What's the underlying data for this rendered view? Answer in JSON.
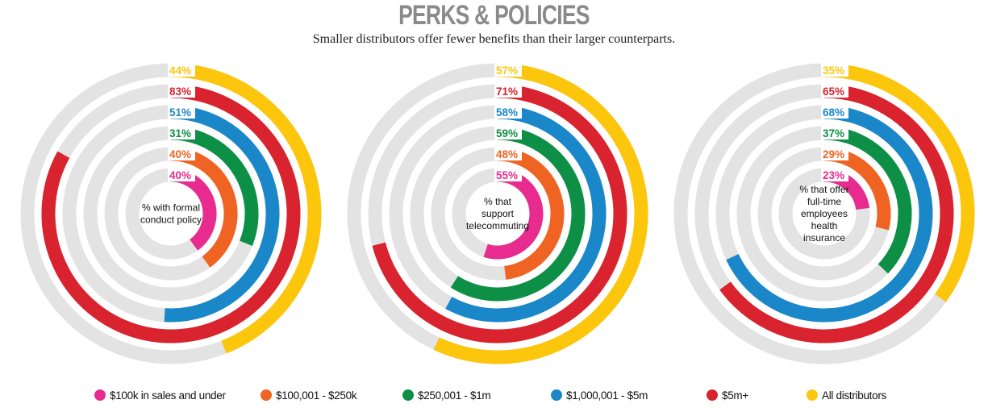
{
  "title": "PERKS & POLICIES",
  "subtitle": "Smaller distributors offer fewer benefits than their larger counterparts.",
  "colors": {
    "track": "#e3e3e3",
    "$100k in sales and under": "#e82c8f",
    "$100,001 - $250k": "#f06423",
    "$250,001 - $1m": "#0e8f46",
    "$1,000,001 - $5m": "#1a87c9",
    "$5m+": "#d9232e",
    "All distributors": "#fcc60d"
  },
  "legend": [
    {
      "label": "$100k in sales and under",
      "color": "#e82c8f"
    },
    {
      "label": "$100,001 - $250k",
      "color": "#f06423"
    },
    {
      "label": "$250,001 - $1m",
      "color": "#0e8f46"
    },
    {
      "label": "$1,000,001 - $5m",
      "color": "#1a87c9"
    },
    {
      "label": "$5m+",
      "color": "#d9232e"
    },
    {
      "label": "All distributors",
      "color": "#fcc60d"
    }
  ],
  "chart_data": [
    {
      "type": "radial-bar",
      "title": "% with formal conduct policy",
      "series": [
        {
          "name": "$100k in sales and under",
          "value": 40,
          "label": "40%"
        },
        {
          "name": "$100,001 - $250k",
          "value": 40,
          "label": "40%"
        },
        {
          "name": "$250,001 - $1m",
          "value": 31,
          "label": "31%"
        },
        {
          "name": "$1,000,001 - $5m",
          "value": 51,
          "label": "51%"
        },
        {
          "name": "$5m+",
          "value": 83,
          "label": "83%"
        },
        {
          "name": "All distributors",
          "value": 44,
          "label": "44%"
        }
      ]
    },
    {
      "type": "radial-bar",
      "title": "% that support telecommuting",
      "series": [
        {
          "name": "$100k in sales and under",
          "value": 55,
          "label": "55%"
        },
        {
          "name": "$100,001 - $250k",
          "value": 48,
          "label": "48%"
        },
        {
          "name": "$250,001 - $1m",
          "value": 59,
          "label": "59%"
        },
        {
          "name": "$1,000,001 - $5m",
          "value": 58,
          "label": "58%"
        },
        {
          "name": "$5m+",
          "value": 71,
          "label": "71%"
        },
        {
          "name": "All distributors",
          "value": 57,
          "label": "57%"
        }
      ]
    },
    {
      "type": "radial-bar",
      "title": "% that offer full-time employees health insurance",
      "series": [
        {
          "name": "$100k in sales and under",
          "value": 23,
          "label": "23%"
        },
        {
          "name": "$100,001 - $250k",
          "value": 29,
          "label": "29%"
        },
        {
          "name": "$250,001 - $1m",
          "value": 37,
          "label": "37%"
        },
        {
          "name": "$1,000,001 - $5m",
          "value": 68,
          "label": "68%"
        },
        {
          "name": "$5m+",
          "value": 65,
          "label": "65%"
        },
        {
          "name": "All distributors",
          "value": 35,
          "label": "35%"
        }
      ]
    }
  ]
}
